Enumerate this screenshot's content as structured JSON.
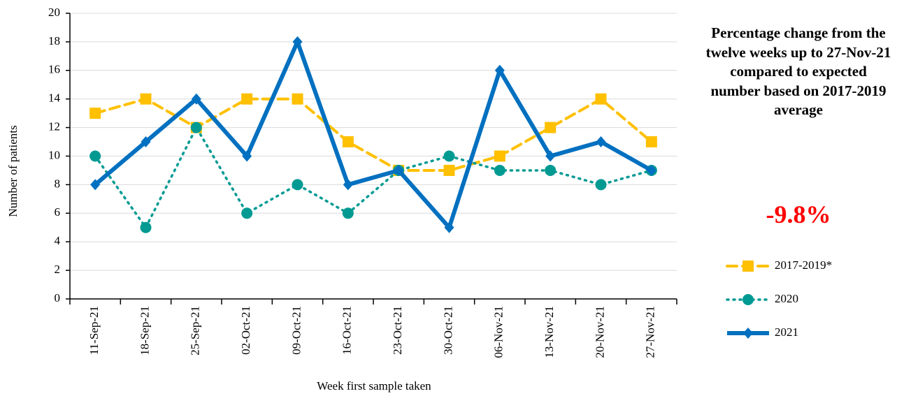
{
  "chart_data": {
    "type": "line",
    "y_label": "Number of patients",
    "x_label": "Week first sample taken",
    "annotation": "Percentage change from the twelve weeks up to 27-Nov-21 compared to expected number based on 2017-2019 average",
    "change_label": "-9.8%",
    "categories": [
      "11-Sep-21",
      "18-Sep-21",
      "25-Sep-21",
      "02-Oct-21",
      "09-Oct-21",
      "16-Oct-21",
      "23-Oct-21",
      "30-Oct-21",
      "06-Nov-21",
      "13-Nov-21",
      "20-Nov-21",
      "27-Nov-21"
    ],
    "series": [
      {
        "name": "2017-2019*",
        "color": "#ffc000",
        "dash": "14 8",
        "width": 4,
        "marker": "square",
        "values": [
          13,
          14,
          12,
          14,
          14,
          11,
          9,
          9,
          10,
          12,
          14,
          11
        ]
      },
      {
        "name": "2020",
        "color": "#009a93",
        "dash": "2 7",
        "width": 3.5,
        "marker": "circle",
        "values": [
          10,
          5,
          12,
          6,
          8,
          6,
          9,
          10,
          9,
          9,
          8,
          9
        ]
      },
      {
        "name": "2021",
        "color": "#0070c0",
        "dash": "none",
        "width": 6,
        "marker": "diamond",
        "values": [
          8,
          11,
          14,
          10,
          18,
          8,
          9,
          5,
          16,
          10,
          11,
          9
        ]
      }
    ],
    "ylim": [
      0,
      20
    ],
    "yticks": [
      0,
      2,
      4,
      6,
      8,
      10,
      12,
      14,
      16,
      18,
      20
    ],
    "grid": true,
    "legend": "right"
  }
}
